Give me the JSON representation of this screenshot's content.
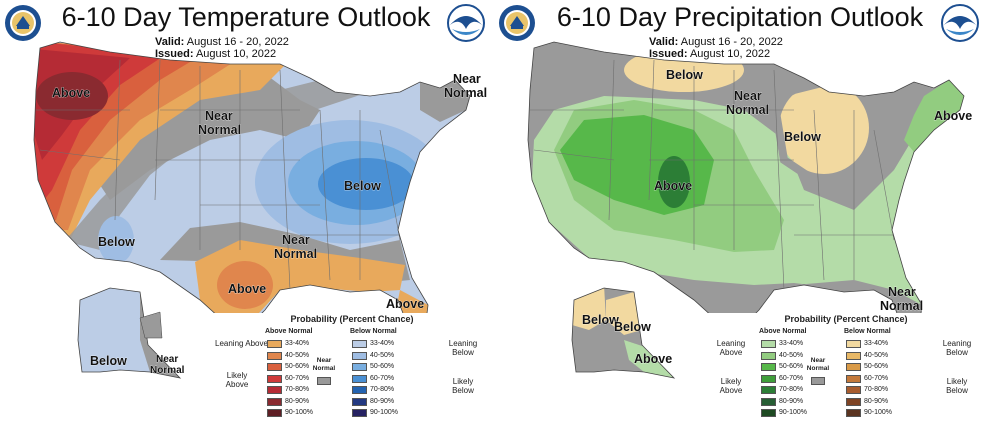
{
  "panels": [
    {
      "title": "6-10 Day Temperature Outlook",
      "valid_label": "Valid:",
      "valid_value": "August 16 - 20, 2022",
      "issued_label": "Issued:",
      "issued_value": "August 10, 2022",
      "map_labels": [
        "Above",
        "Near Normal",
        "Near Normal",
        "Below",
        "Below",
        "Near Normal",
        "Above",
        "Above",
        "Below",
        "Near Normal"
      ],
      "legend": {
        "title": "Probability (Percent Chance)",
        "col_above": "Above Normal",
        "col_below": "Below Normal",
        "leaning_above": "Leaning Above",
        "likely_above": "Likely Above",
        "leaning_below": "Leaning Below",
        "likely_below": "Likely Below",
        "near_normal": "Near Normal",
        "ranges": [
          "33-40%",
          "40-50%",
          "50-60%",
          "60-70%",
          "70-80%",
          "80-90%",
          "90-100%"
        ],
        "above_colors": [
          "#e8a95c",
          "#e0864d",
          "#d9603e",
          "#cf3a3a",
          "#b52b35",
          "#8a2a30",
          "#5e1e24"
        ],
        "below_colors": [
          "#bccde6",
          "#9fbde3",
          "#79aee0",
          "#4a90d4",
          "#2463b0",
          "#243a82",
          "#262262"
        ]
      }
    },
    {
      "title": "6-10 Day Precipitation Outlook",
      "valid_label": "Valid:",
      "valid_value": "August 16 - 20, 2022",
      "issued_label": "Issued:",
      "issued_value": "August 10, 2022",
      "map_labels": [
        "Below",
        "Near Normal",
        "Below",
        "Above",
        "Above",
        "Near Normal",
        "Below",
        "Below",
        "Above"
      ],
      "legend": {
        "title": "Probability (Percent Chance)",
        "col_above": "Above Normal",
        "col_below": "Below Normal",
        "leaning_above": "Leaning Above",
        "likely_above": "Likely Above",
        "leaning_below": "Leaning Below",
        "likely_below": "Likely Below",
        "near_normal": "Near Normal",
        "ranges": [
          "33-40%",
          "40-50%",
          "50-60%",
          "60-70%",
          "70-80%",
          "80-90%",
          "90-100%"
        ],
        "above_colors": [
          "#b4dca8",
          "#92cc80",
          "#57b84a",
          "#3f9e3a",
          "#2c7e36",
          "#275e35",
          "#1e4a22"
        ],
        "below_colors": [
          "#f2d9a0",
          "#e8b866",
          "#d99a47",
          "#c4793a",
          "#a85c2e",
          "#7e4425",
          "#5a3420"
        ]
      }
    }
  ],
  "map_colors": {
    "near_normal_gray": "#9a9a9a",
    "state_line": "#6f6f6f"
  }
}
